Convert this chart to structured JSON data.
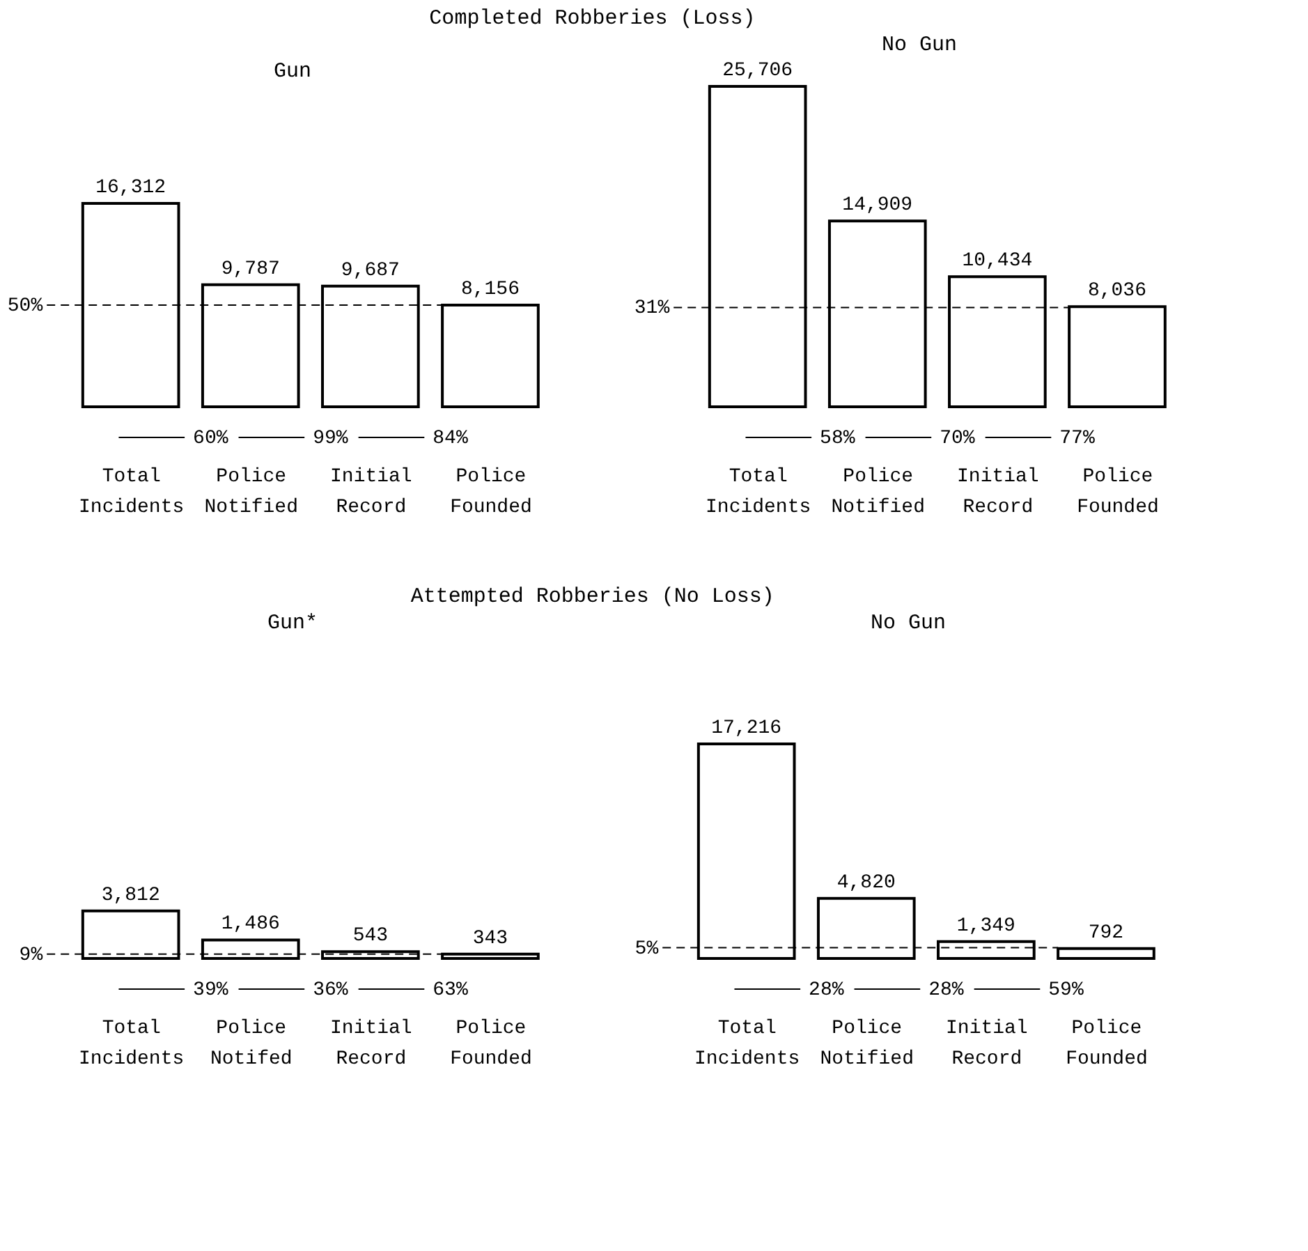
{
  "chart_data": [
    {
      "type": "bar",
      "title": "Gun",
      "categories": [
        "Total Incidents",
        "Police Notified",
        "Initial Record",
        "Police Founded"
      ],
      "values": [
        16312,
        9787,
        9687,
        8156
      ],
      "value_labels": [
        "16,312",
        "9,787",
        "9,687",
        "8,156"
      ],
      "color": "#ffffff",
      "ref_lines": [
        {
          "axis": "y",
          "value": 8156,
          "line_style": "dashed"
        }
      ],
      "annotations": [
        "Completed Robberies (Loss)",
        "60%",
        "99%",
        "84%",
        "50%"
      ]
    },
    {
      "type": "bar",
      "title": "No Gun",
      "categories": [
        "Total Incidents",
        "Police Notified",
        "Initial Record",
        "Police Founded"
      ],
      "values": [
        25706,
        14909,
        10434,
        8036
      ],
      "value_labels": [
        "25,706",
        "14,909",
        "10,434",
        "8,036"
      ],
      "color": "#ffffff",
      "ref_lines": [
        {
          "axis": "y",
          "value": 7969,
          "line_style": "dashed"
        }
      ],
      "annotations": [
        "58%",
        "70%",
        "77%",
        "31%"
      ]
    },
    {
      "type": "bar",
      "title": "Gun*",
      "categories": [
        "Total Incidents",
        "Police Notifed",
        "Initial Record",
        "Police Founded"
      ],
      "values": [
        3812,
        1486,
        543,
        343
      ],
      "value_labels": [
        "3,812",
        "1,486",
        "543",
        "343"
      ],
      "color": "#ffffff",
      "ref_lines": [
        {
          "axis": "y",
          "value": 343,
          "line_style": "dashed"
        }
      ],
      "annotations": [
        "Attempted Robberies (No Loss)",
        "39%",
        "36%",
        "63%",
        "9%"
      ]
    },
    {
      "type": "bar",
      "title": "No Gun",
      "categories": [
        "Total Incidents",
        "Police Notified",
        "Initial Record",
        "Police Founded"
      ],
      "values": [
        17216,
        4820,
        1349,
        792
      ],
      "value_labels": [
        "17,216",
        "4,820",
        "1,349",
        "792"
      ],
      "color": "#ffffff",
      "ref_lines": [
        {
          "axis": "y",
          "value": 861,
          "line_style": "dashed"
        }
      ],
      "annotations": [
        "28%",
        "28%",
        "59%",
        "5%"
      ]
    }
  ]
}
